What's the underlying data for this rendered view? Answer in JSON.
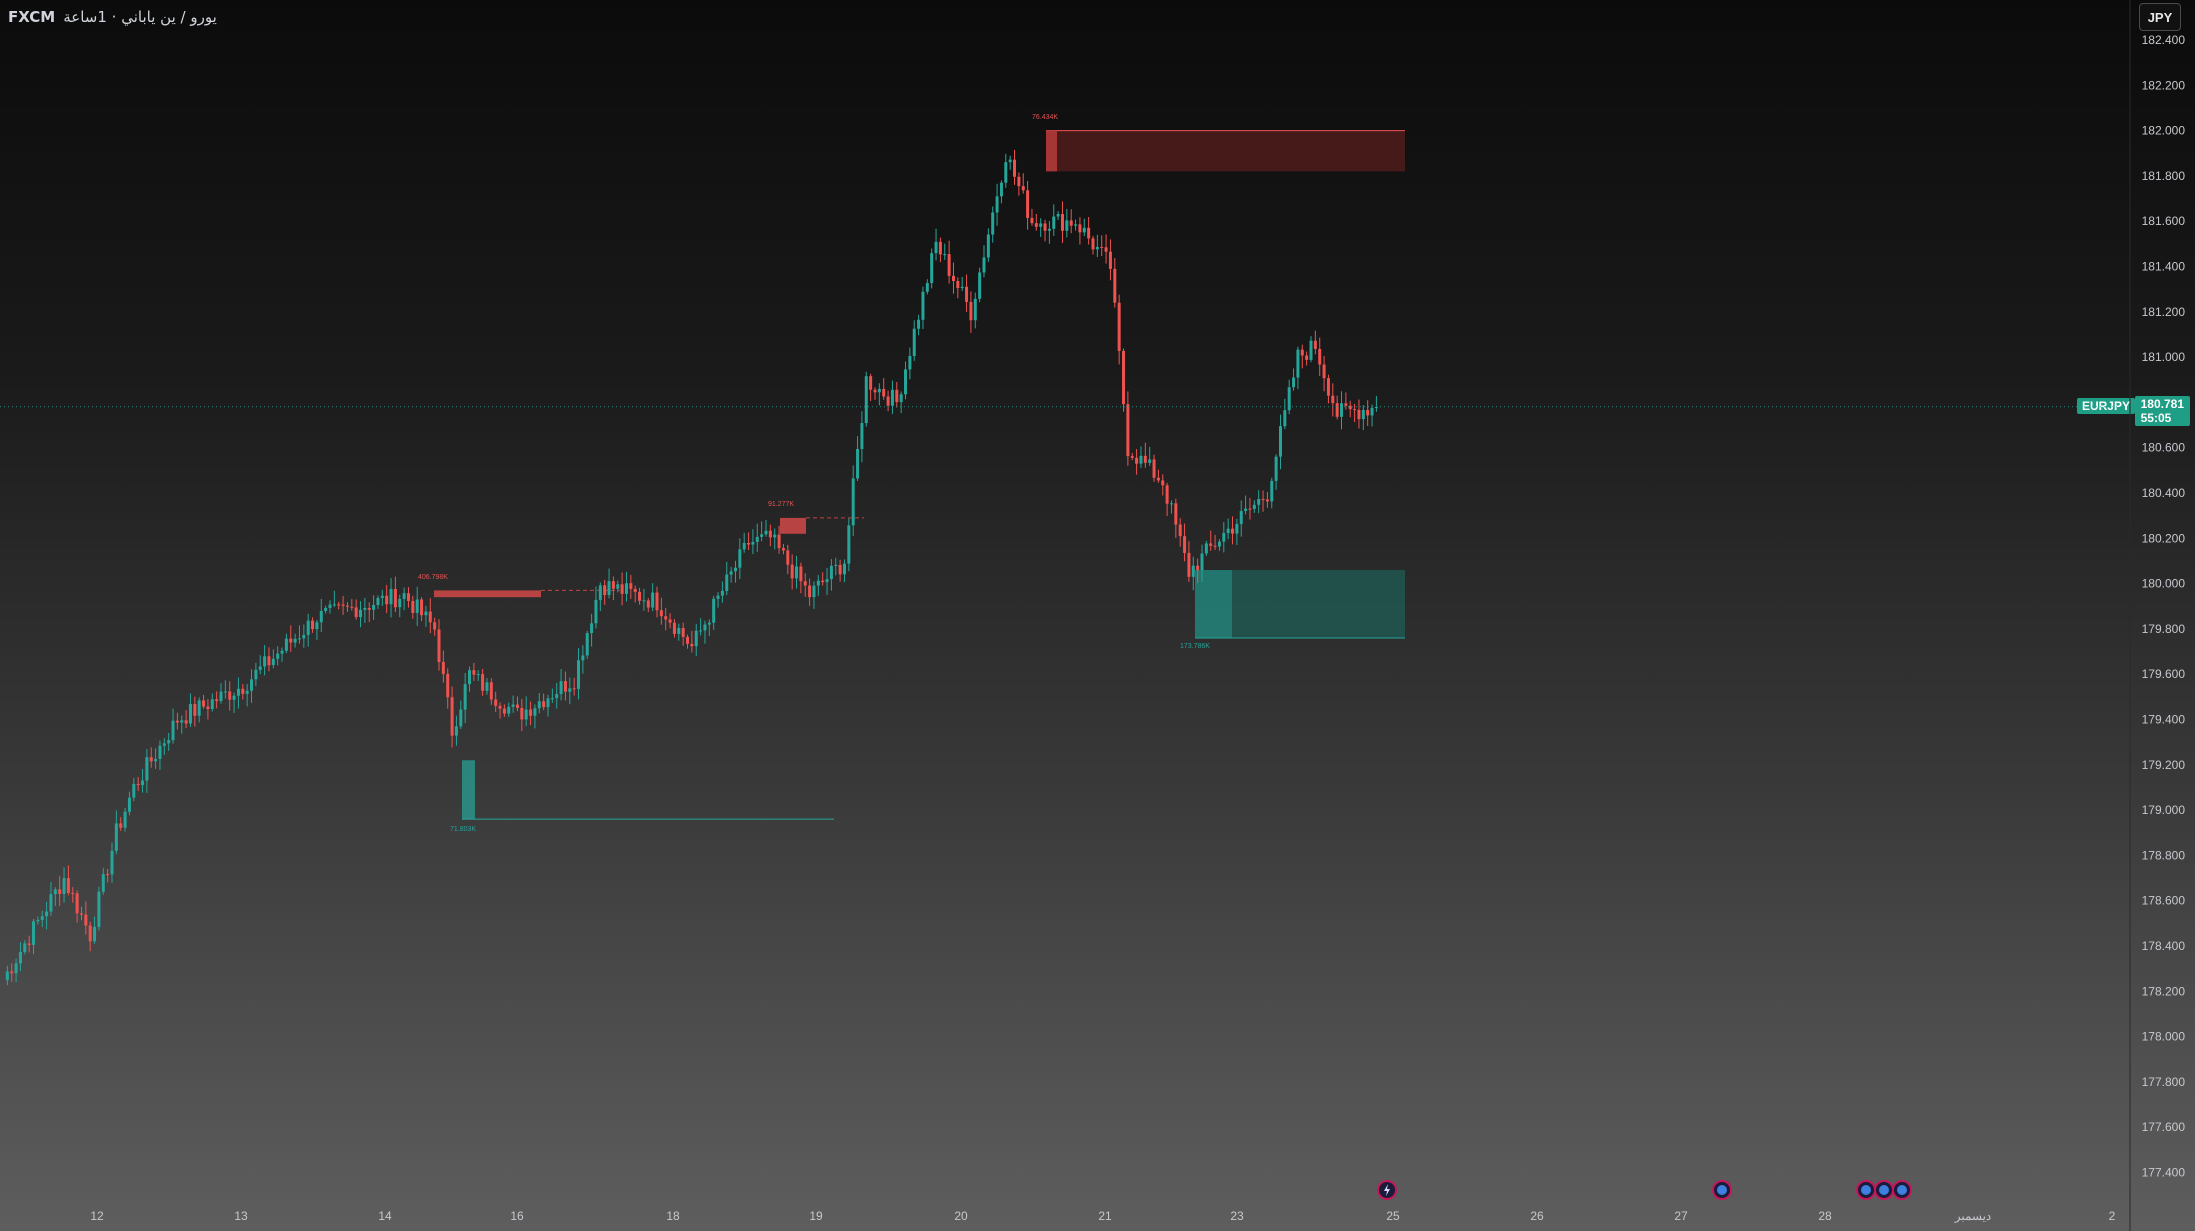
{
  "header": {
    "broker": "FXCM",
    "pair_info": "يورو / ين ياباني · 1ساعة"
  },
  "currency_button": "JPY",
  "current_price": {
    "symbol": "EURJPY",
    "price": "180.781",
    "countdown": "55:05",
    "value": 180.781
  },
  "colors": {
    "up": "#26a69a",
    "down": "#ef5350",
    "supply": "#5a1e1e",
    "demand": "#1f5c55",
    "last_price": "#26a69a"
  },
  "chart_data": {
    "type": "candlestick",
    "title": "",
    "ylim": [
      177.2,
      182.45
    ],
    "y_ticks": [
      {
        "v": 182.4,
        "label": "182.400"
      },
      {
        "v": 182.2,
        "label": "182.200"
      },
      {
        "v": 182.0,
        "label": "182.000"
      },
      {
        "v": 181.8,
        "label": "181.800"
      },
      {
        "v": 181.6,
        "label": "181.600"
      },
      {
        "v": 181.4,
        "label": "181.400"
      },
      {
        "v": 181.2,
        "label": "181.200"
      },
      {
        "v": 181.0,
        "label": "181.000"
      },
      {
        "v": 180.6,
        "label": "180.600"
      },
      {
        "v": 180.4,
        "label": "180.400"
      },
      {
        "v": 180.2,
        "label": "180.200"
      },
      {
        "v": 180.0,
        "label": "180.000"
      },
      {
        "v": 179.8,
        "label": "179.800"
      },
      {
        "v": 179.6,
        "label": "179.600"
      },
      {
        "v": 179.4,
        "label": "179.400"
      },
      {
        "v": 179.2,
        "label": "179.200"
      },
      {
        "v": 179.0,
        "label": "179.000"
      },
      {
        "v": 178.8,
        "label": "178.800"
      },
      {
        "v": 178.6,
        "label": "178.600"
      },
      {
        "v": 178.4,
        "label": "178.400"
      },
      {
        "v": 178.2,
        "label": "178.200"
      },
      {
        "v": 178.0,
        "label": "178.000"
      },
      {
        "v": 177.8,
        "label": "177.800"
      },
      {
        "v": 177.6,
        "label": "177.600"
      },
      {
        "v": 177.4,
        "label": "177.400"
      }
    ],
    "x_ticks": [
      "12",
      "13",
      "14",
      "16",
      "18",
      "19",
      "20",
      "21",
      "23",
      "25",
      "26",
      "27",
      "28",
      "ديسمبر",
      "2"
    ],
    "anchors": [
      {
        "t": 0,
        "p": 178.25
      },
      {
        "t": 14,
        "p": 178.7
      },
      {
        "t": 20,
        "p": 178.45
      },
      {
        "t": 26,
        "p": 178.9
      },
      {
        "t": 30,
        "p": 179.1
      },
      {
        "t": 40,
        "p": 179.4
      },
      {
        "t": 55,
        "p": 179.55
      },
      {
        "t": 72,
        "p": 179.85
      },
      {
        "t": 82,
        "p": 179.9
      },
      {
        "t": 92,
        "p": 179.95
      },
      {
        "t": 99,
        "p": 179.8
      },
      {
        "t": 103,
        "p": 179.35
      },
      {
        "t": 107,
        "p": 179.6
      },
      {
        "t": 118,
        "p": 179.42
      },
      {
        "t": 131,
        "p": 179.58
      },
      {
        "t": 137,
        "p": 180.0
      },
      {
        "t": 150,
        "p": 179.92
      },
      {
        "t": 158,
        "p": 179.72
      },
      {
        "t": 171,
        "p": 180.18
      },
      {
        "t": 176,
        "p": 180.2
      },
      {
        "t": 185,
        "p": 179.95
      },
      {
        "t": 193,
        "p": 180.1
      },
      {
        "t": 198,
        "p": 180.9
      },
      {
        "t": 205,
        "p": 180.8
      },
      {
        "t": 214,
        "p": 181.5
      },
      {
        "t": 222,
        "p": 181.2
      },
      {
        "t": 230,
        "p": 181.9
      },
      {
        "t": 236,
        "p": 181.6
      },
      {
        "t": 246,
        "p": 181.6
      },
      {
        "t": 254,
        "p": 181.4
      },
      {
        "t": 258,
        "p": 180.6
      },
      {
        "t": 266,
        "p": 180.45
      },
      {
        "t": 272,
        "p": 180.05
      },
      {
        "t": 279,
        "p": 180.2
      },
      {
        "t": 290,
        "p": 180.4
      },
      {
        "t": 297,
        "p": 181.0
      },
      {
        "t": 301,
        "p": 181.05
      },
      {
        "t": 306,
        "p": 180.75
      },
      {
        "t": 315,
        "p": 180.78
      }
    ],
    "annotations": [
      {
        "label": "76.434K",
        "kind": "supply"
      },
      {
        "label": "91.277K",
        "kind": "supply"
      },
      {
        "label": "406.798K",
        "kind": "supply"
      },
      {
        "label": "71.803K",
        "kind": "demand"
      },
      {
        "label": "173.786K",
        "kind": "demand"
      }
    ]
  },
  "event_icons": [
    "lightning-icon",
    "news-icon-1",
    "news-icon-2",
    "news-icon-3",
    "news-icon-4"
  ]
}
